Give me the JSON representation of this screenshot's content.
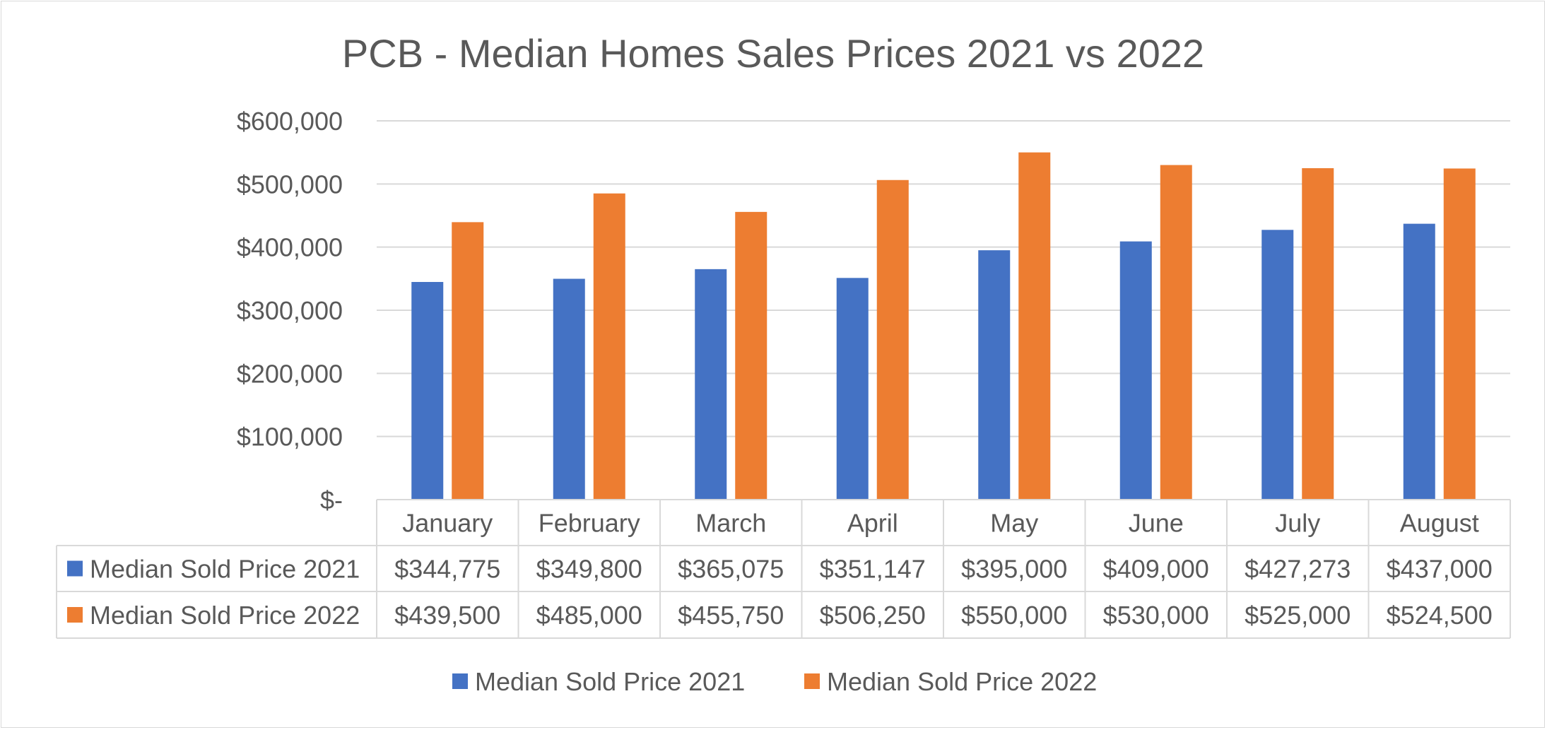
{
  "chart_data": {
    "type": "bar",
    "title": "PCB - Median Homes Sales Prices 2021 vs 2022",
    "categories": [
      "January",
      "February",
      "March",
      "April",
      "May",
      "June",
      "July",
      "August"
    ],
    "series": [
      {
        "name": "Median Sold Price 2021",
        "color": "#4472c4",
        "values": [
          344775,
          349800,
          365075,
          351147,
          395000,
          409000,
          427273,
          437000
        ],
        "labels": [
          "$344,775",
          "$349,800",
          "$365,075",
          "$351,147",
          "$395,000",
          "$409,000",
          "$427,273",
          "$437,000"
        ]
      },
      {
        "name": "Median Sold Price 2022",
        "color": "#ed7d31",
        "values": [
          439500,
          485000,
          455750,
          506250,
          550000,
          530000,
          525000,
          524500
        ],
        "labels": [
          "$439,500",
          "$485,000",
          "$455,750",
          "$506,250",
          "$550,000",
          "$530,000",
          "$525,000",
          "$524,500"
        ]
      }
    ],
    "ylim": [
      0,
      600000
    ],
    "yticks": [
      {
        "value": 0,
        "label": "$-"
      },
      {
        "value": 100000,
        "label": "$100,000"
      },
      {
        "value": 200000,
        "label": "$200,000"
      },
      {
        "value": 300000,
        "label": "$300,000"
      },
      {
        "value": 400000,
        "label": "$400,000"
      },
      {
        "value": 500000,
        "label": "$500,000"
      },
      {
        "value": 600000,
        "label": "$600,000"
      }
    ],
    "grid": true,
    "data_table": true,
    "legend_position": "bottom"
  }
}
